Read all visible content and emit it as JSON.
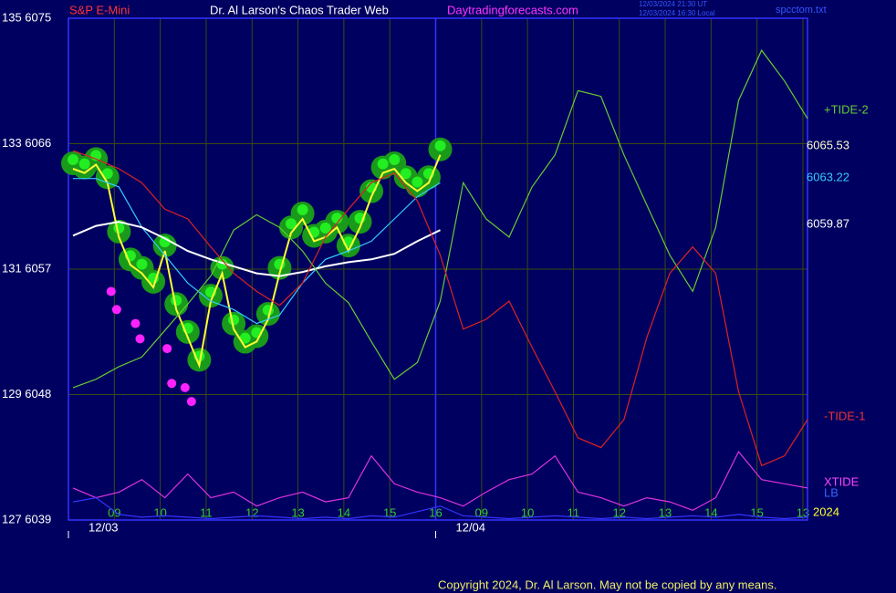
{
  "chart_data": {
    "type": "line",
    "header": {
      "instrument": "S&P E-Mini",
      "title": "Dr. Al Larson's Chaos Trader Web",
      "site": "Daytradingforecasts.com",
      "time_ut": "12/03/2024 21:30 UT",
      "time_local": "12/03/2024 16:30 Local",
      "file": "spcctom.txt"
    },
    "copyright": "Copyright 2024, Dr. Al Larson. May not be copied by any means.",
    "dates": [
      {
        "x": 0,
        "label": "12/03"
      },
      {
        "x": 8,
        "label": "12/04"
      }
    ],
    "year": "2024",
    "xlim": [
      0,
      16.1
    ],
    "xticks": [
      {
        "value": 1,
        "label": "09"
      },
      {
        "value": 2,
        "label": "10"
      },
      {
        "value": 3,
        "label": "11"
      },
      {
        "value": 4,
        "label": "12"
      },
      {
        "value": 5,
        "label": "13"
      },
      {
        "value": 6,
        "label": "14"
      },
      {
        "value": 7,
        "label": "15"
      },
      {
        "value": 8,
        "label": "16"
      },
      {
        "value": 9,
        "label": "09"
      },
      {
        "value": 10,
        "label": "10"
      },
      {
        "value": 11,
        "label": "11"
      },
      {
        "value": 12,
        "label": "12"
      },
      {
        "value": 13,
        "label": "13"
      },
      {
        "value": 14,
        "label": "14"
      },
      {
        "value": 15,
        "label": "15"
      },
      {
        "value": 16,
        "label": "13"
      }
    ],
    "ylim": [
      6039,
      6075
    ],
    "yticks": [
      {
        "value": 6039,
        "label": "127 6039"
      },
      {
        "value": 6048,
        "label": "129 6048"
      },
      {
        "value": 6057,
        "label": "131 6057"
      },
      {
        "value": 6066,
        "label": "133 6066"
      },
      {
        "value": 6075,
        "label": "135 6075"
      }
    ],
    "grid": true,
    "series": [
      {
        "name": "6065.53",
        "color": "#ffff33",
        "glow": true,
        "x": [
          0.1,
          0.35,
          0.6,
          0.85,
          1.1,
          1.35,
          1.6,
          1.85,
          2.1,
          2.35,
          2.6,
          2.85,
          3.1,
          3.35,
          3.6,
          3.85,
          4.1,
          4.35,
          4.6,
          4.85,
          5.1,
          5.35,
          5.6,
          5.85,
          6.1,
          6.35,
          6.6,
          6.85,
          7.1,
          7.35,
          7.6,
          7.85,
          8.1
        ],
        "values": [
          6064.2,
          6063.9,
          6064.5,
          6063.2,
          6059.3,
          6057.3,
          6056.7,
          6055.7,
          6058.3,
          6054.1,
          6052.1,
          6050.1,
          6054.7,
          6056.7,
          6052.7,
          6051.4,
          6051.8,
          6053.4,
          6056.7,
          6059.6,
          6060.6,
          6059.0,
          6059.3,
          6060.0,
          6058.3,
          6060.0,
          6062.2,
          6063.9,
          6064.2,
          6063.2,
          6062.6,
          6063.2,
          6065.2
        ]
      },
      {
        "name": "6063.22",
        "color": "#33ccff",
        "x": [
          0.1,
          0.6,
          1.1,
          1.6,
          2.1,
          2.6,
          3.1,
          3.6,
          4.1,
          4.6,
          5.1,
          5.6,
          6.1,
          6.6,
          7.1,
          7.6,
          8.1
        ],
        "values": [
          6063.5,
          6063.5,
          6062.9,
          6060.0,
          6058.0,
          6056.0,
          6054.7,
          6054.1,
          6053.1,
          6053.7,
          6056.0,
          6057.7,
          6058.3,
          6059.0,
          6060.6,
          6062.2,
          6063.2
        ]
      },
      {
        "name": "6059.87",
        "color": "#ffffff",
        "x": [
          0.1,
          0.6,
          1.1,
          1.6,
          2.1,
          2.6,
          3.1,
          3.6,
          4.1,
          4.6,
          5.1,
          5.6,
          6.1,
          6.6,
          7.1,
          7.6,
          8.1
        ],
        "values": [
          6059.4,
          6060.1,
          6060.4,
          6060.0,
          6059.2,
          6058.3,
          6057.7,
          6057.2,
          6056.7,
          6056.5,
          6056.8,
          6057.2,
          6057.5,
          6057.7,
          6058.1,
          6059.0,
          6059.8
        ]
      },
      {
        "name": "+TIDE-2",
        "color": "#66cc33",
        "x": [
          0.1,
          0.6,
          1.1,
          1.6,
          2.1,
          2.6,
          3.1,
          3.6,
          4.1,
          4.6,
          5.1,
          5.6,
          6.1,
          6.6,
          7.1,
          7.6,
          8.1,
          8.6,
          9.1,
          9.6,
          10.1,
          10.6,
          11.1,
          11.6,
          12.1,
          12.6,
          13.1,
          13.6,
          14.1,
          14.6,
          15.1,
          15.6,
          16.1
        ],
        "values": [
          6048.5,
          6049.1,
          6050.0,
          6050.7,
          6052.6,
          6054.5,
          6056.5,
          6059.8,
          6060.9,
          6060.0,
          6058.3,
          6056.0,
          6054.6,
          6051.8,
          6049.1,
          6050.3,
          6054.7,
          6063.2,
          6060.6,
          6059.3,
          6062.9,
          6065.2,
          6069.8,
          6069.4,
          6065.2,
          6061.6,
          6058.0,
          6055.4,
          6060.0,
          6069.1,
          6072.7,
          6070.5,
          6067.8
        ]
      },
      {
        "name": "-TIDE-1",
        "color": "#dd2222",
        "x": [
          0.1,
          0.6,
          1.1,
          1.6,
          2.1,
          2.6,
          3.1,
          3.6,
          4.1,
          4.6,
          5.1,
          5.6,
          6.1,
          6.6,
          7.1,
          7.6,
          8.1,
          8.6,
          9.1,
          9.6,
          10.1,
          10.6,
          11.1,
          11.6,
          12.1,
          12.6,
          13.1,
          13.6,
          14.1,
          14.6,
          15.1,
          15.6,
          16.1
        ],
        "values": [
          6065.5,
          6064.9,
          6064.2,
          6063.2,
          6061.3,
          6060.6,
          6058.6,
          6056.7,
          6055.4,
          6054.4,
          6056.0,
          6059.3,
          6061.3,
          6063.2,
          6063.9,
          6061.9,
          6058.0,
          6052.7,
          6053.4,
          6054.7,
          6051.4,
          6048.2,
          6044.9,
          6044.2,
          6046.2,
          6052.1,
          6056.7,
          6058.6,
          6056.7,
          6048.2,
          6042.9,
          6043.6,
          6046.2
        ]
      },
      {
        "name": "XTIDE",
        "color": "#dd33dd",
        "x": [
          0.1,
          0.6,
          1.1,
          1.6,
          2.1,
          2.6,
          3.1,
          3.6,
          4.1,
          4.6,
          5.1,
          5.6,
          6.1,
          6.6,
          7.1,
          7.6,
          8.1,
          8.6,
          9.1,
          9.6,
          10.1,
          10.6,
          11.1,
          11.6,
          12.1,
          12.6,
          13.1,
          13.6,
          14.1,
          14.6,
          15.1,
          15.6,
          16.1
        ],
        "values": [
          6041.3,
          6040.6,
          6041.0,
          6041.9,
          6040.6,
          6042.3,
          6040.6,
          6041.0,
          6040.0,
          6040.6,
          6041.0,
          6040.3,
          6040.6,
          6043.6,
          6041.6,
          6041.0,
          6040.6,
          6040.0,
          6041.0,
          6041.9,
          6042.3,
          6043.6,
          6041.0,
          6040.6,
          6040.0,
          6040.6,
          6040.3,
          6039.7,
          6040.6,
          6043.9,
          6041.9,
          6041.6,
          6041.3
        ]
      },
      {
        "name": "LB",
        "color": "#3333ff",
        "x": [
          0.1,
          0.6,
          1.1,
          1.6,
          2.1,
          2.6,
          3.1,
          3.6,
          4.1,
          4.6,
          5.1,
          5.6,
          6.1,
          6.6,
          7.1,
          7.6,
          8.1,
          8.6,
          9.1,
          9.6,
          10.1,
          10.6,
          11.1,
          11.6,
          12.1,
          12.6,
          13.1,
          13.6,
          14.1,
          14.6,
          15.1,
          15.6,
          16.1
        ],
        "values": [
          6040.3,
          6040.6,
          6039.4,
          6039.2,
          6039.3,
          6039.2,
          6039.1,
          6039.2,
          6039.3,
          6039.2,
          6039.1,
          6039.2,
          6039.1,
          6039.3,
          6039.2,
          6039.6,
          6040.0,
          6039.3,
          6039.2,
          6039.1,
          6039.2,
          6039.3,
          6039.2,
          6039.1,
          6039.2,
          6039.1,
          6039.2,
          6039.3,
          6039.2,
          6039.4,
          6039.2,
          6039.1,
          6039.2
        ]
      }
    ],
    "markers": {
      "color": "#ff22ff",
      "x": [
        0.93,
        1.05,
        1.46,
        1.56,
        2.15,
        2.25,
        2.54,
        2.68
      ],
      "y": [
        6055.4,
        6054.1,
        6053.1,
        6052.0,
        6051.3,
        6048.8,
        6048.5,
        6047.5
      ]
    }
  }
}
